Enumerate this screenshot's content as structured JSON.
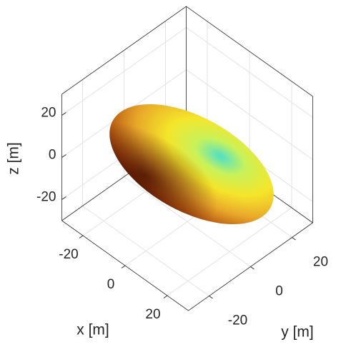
{
  "chart_data": {
    "type": "surface",
    "xlabel": "x [m]",
    "ylabel": "y [m]",
    "zlabel": "z [m]",
    "xlim": [
      -30,
      30
    ],
    "ylim": [
      -30,
      30
    ],
    "zlim": [
      -30,
      30
    ],
    "xticks": [
      -20,
      0,
      20
    ],
    "yticks": [
      -20,
      0,
      20
    ],
    "zticks": [
      -20,
      0,
      20
    ],
    "grid": true,
    "box": true
  }
}
